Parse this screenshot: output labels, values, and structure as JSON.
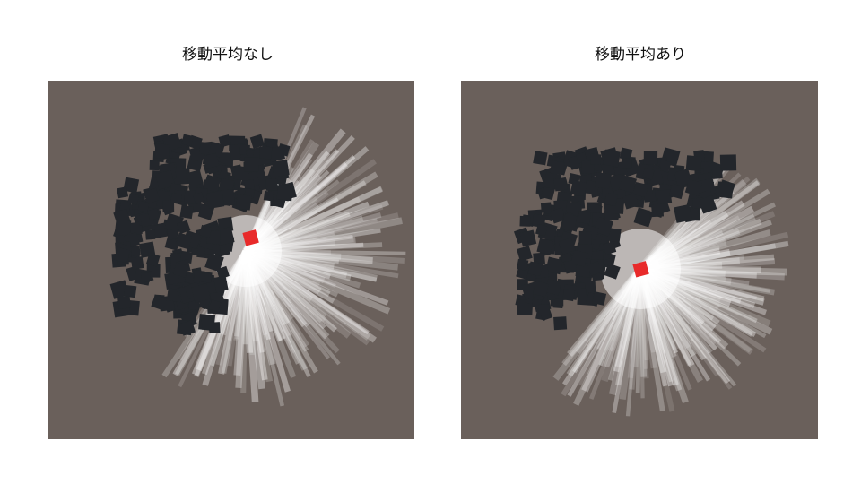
{
  "panels": [
    {
      "title": "移動平均なし"
    },
    {
      "title": "移動平均あり"
    }
  ],
  "colors": {
    "background": "#6a605b",
    "cubes": "#23262b",
    "target": "#e82a2a",
    "rays": "#ffffff"
  }
}
